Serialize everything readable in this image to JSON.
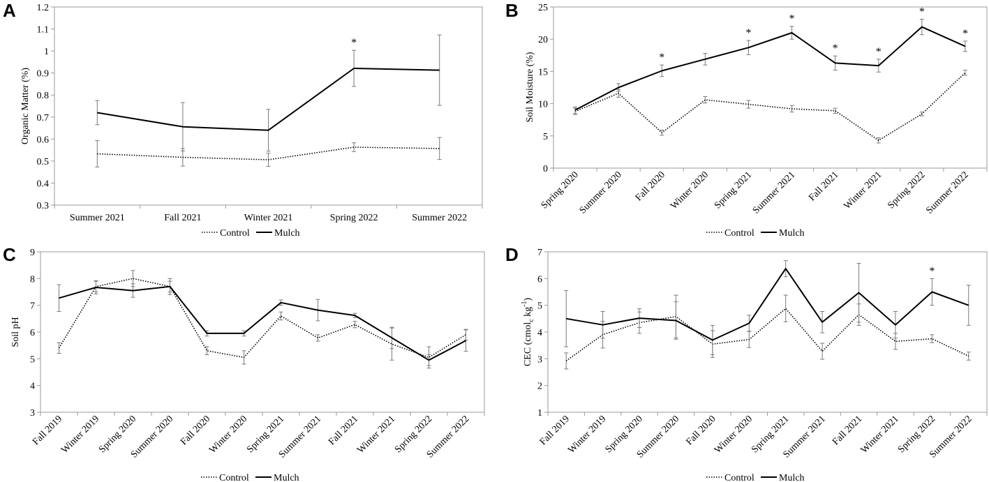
{
  "chart_data": [
    {
      "panel": "A",
      "type": "line",
      "ylabel": "Organic Matter (%)",
      "ylim": [
        0.3,
        1.2
      ],
      "yticks": [
        0.3,
        0.4,
        0.5,
        0.6,
        0.7,
        0.8,
        0.9,
        1,
        1.1,
        1.2
      ],
      "ytick_labels": [
        "0.3",
        "0.4",
        "0.5",
        "0.6",
        "0.7",
        "0.8",
        "0.9",
        "1",
        "1.1",
        "1.2"
      ],
      "categories": [
        "Summer 2021",
        "Fall 2021",
        "Winter 2021",
        "Spring 2022",
        "Summer 2022"
      ],
      "rotate_ticks": false,
      "series": [
        {
          "name": "Control",
          "style": "dotted",
          "values": [
            0.533,
            0.517,
            0.506,
            0.563,
            0.557
          ],
          "errors": [
            0.06,
            0.04,
            0.03,
            0.02,
            0.05
          ]
        },
        {
          "name": "Mulch",
          "style": "solid",
          "values": [
            0.72,
            0.656,
            0.64,
            0.921,
            0.913
          ],
          "errors": [
            0.055,
            0.11,
            0.095,
            0.082,
            0.16
          ]
        }
      ],
      "significance": [
        false,
        false,
        false,
        true,
        false
      ],
      "sig_marker": "*",
      "legend": [
        "Control",
        "Mulch"
      ]
    },
    {
      "panel": "B",
      "type": "line",
      "ylabel": "Soil Moisture (%)",
      "ylim": [
        0,
        25
      ],
      "yticks": [
        0,
        5,
        10,
        15,
        20,
        25
      ],
      "ytick_labels": [
        "0",
        "5",
        "10",
        "15",
        "20",
        "25"
      ],
      "categories": [
        "Spring 2020",
        "Summer 2020",
        "Fall 2020",
        "Winter 2020",
        "Spring 2021",
        "Summer 2021",
        "Fall 2021",
        "Winter 2021",
        "Spring 2022",
        "Summer 2022"
      ],
      "rotate_ticks": true,
      "series": [
        {
          "name": "Control",
          "style": "dotted",
          "values": [
            8.8,
            11.6,
            5.5,
            10.6,
            9.9,
            9.2,
            8.9,
            4.3,
            8.4,
            14.8
          ],
          "errors": [
            0.5,
            0.6,
            0.4,
            0.5,
            0.6,
            0.5,
            0.4,
            0.4,
            0.3,
            0.4
          ]
        },
        {
          "name": "Mulch",
          "style": "solid",
          "values": [
            9.0,
            12.5,
            15.1,
            16.9,
            18.7,
            21.0,
            16.3,
            15.9,
            21.9,
            18.9
          ],
          "errors": [
            0.5,
            0.6,
            0.9,
            0.9,
            1.1,
            1.0,
            1.1,
            1.0,
            1.2,
            0.8
          ]
        }
      ],
      "significance": [
        false,
        false,
        true,
        false,
        true,
        true,
        true,
        true,
        true,
        true
      ],
      "sig_marker": "*",
      "legend": [
        "Control",
        "Mulch"
      ]
    },
    {
      "panel": "C",
      "type": "line",
      "ylabel": "Soil pH",
      "ylim": [
        3,
        9
      ],
      "yticks": [
        3,
        4,
        5,
        6,
        7,
        8,
        9
      ],
      "ytick_labels": [
        "3",
        "4",
        "5",
        "6",
        "7",
        "8",
        "9"
      ],
      "categories": [
        "Fall 2019",
        "Winter 2019",
        "Spring 2020",
        "Summer 2020",
        "Fall 2020",
        "Winter 2020",
        "Spring 2021",
        "Summer 2021",
        "Fall 2021",
        "Winter 2021",
        "Spring 2022",
        "Summer 2022"
      ],
      "rotate_ticks": true,
      "series": [
        {
          "name": "Control",
          "style": "dotted",
          "values": [
            5.4,
            7.7,
            8.0,
            7.7,
            5.3,
            5.05,
            6.6,
            5.78,
            6.28,
            5.55,
            5.05,
            5.9
          ],
          "errors": [
            0.2,
            0.2,
            0.3,
            0.2,
            0.15,
            0.25,
            0.15,
            0.12,
            0.12,
            0.6,
            0.4,
            0.2
          ]
        },
        {
          "name": "Mulch",
          "style": "solid",
          "values": [
            7.27,
            7.67,
            7.55,
            7.7,
            5.95,
            5.95,
            7.1,
            6.82,
            6.62,
            5.78,
            4.95,
            5.68
          ],
          "errors": [
            0.5,
            0.25,
            0.25,
            0.3,
            0.1,
            0.1,
            0.1,
            0.4,
            0.08,
            0.4,
            0.2,
            0.4
          ]
        }
      ],
      "significance": [
        false,
        false,
        false,
        false,
        false,
        false,
        false,
        false,
        false,
        false,
        false,
        false
      ],
      "sig_marker": "*",
      "legend": [
        "Control",
        "Mulch"
      ]
    },
    {
      "panel": "D",
      "type": "line",
      "ylabel": "CEC   (cmolc kg-1)",
      "ylabel_parts": {
        "prefix": "CEC   (cmol",
        "sub": "c",
        "mid": " kg",
        "sup": "-1",
        "suffix": ")"
      },
      "ylim": [
        1,
        7
      ],
      "yticks": [
        1,
        2,
        3,
        4,
        5,
        6,
        7
      ],
      "ytick_labels": [
        "1",
        "2",
        "3",
        "4",
        "5",
        "6",
        "7"
      ],
      "categories": [
        "Fall 2019",
        "Winter 2019",
        "Spring 2020",
        "Summer 2020",
        "Fall 2020",
        "Winter 2020",
        "Spring 2021",
        "Summer 2021",
        "Fall 2021",
        "Winter 2021",
        "Spring 2022",
        "Summer 2022"
      ],
      "rotate_ticks": true,
      "series": [
        {
          "name": "Control",
          "style": "dotted",
          "values": [
            2.92,
            3.9,
            4.35,
            4.58,
            3.55,
            3.72,
            4.88,
            3.28,
            4.65,
            3.65,
            3.75,
            3.1
          ],
          "errors": [
            0.3,
            0.5,
            0.4,
            0.8,
            0.5,
            0.3,
            0.5,
            0.3,
            0.4,
            0.3,
            0.15,
            0.15
          ]
        },
        {
          "name": "Mulch",
          "style": "solid",
          "values": [
            4.5,
            4.27,
            4.52,
            4.43,
            3.7,
            4.33,
            6.37,
            4.37,
            5.47,
            4.27,
            5.5,
            5.0
          ],
          "errors": [
            1.05,
            0.5,
            0.35,
            0.7,
            0.55,
            0.3,
            0.3,
            0.4,
            1.1,
            0.5,
            0.5,
            0.75
          ]
        }
      ],
      "significance": [
        false,
        false,
        false,
        false,
        false,
        false,
        false,
        false,
        false,
        false,
        true,
        false
      ],
      "sig_marker": "*",
      "legend": [
        "Control",
        "Mulch"
      ]
    }
  ]
}
